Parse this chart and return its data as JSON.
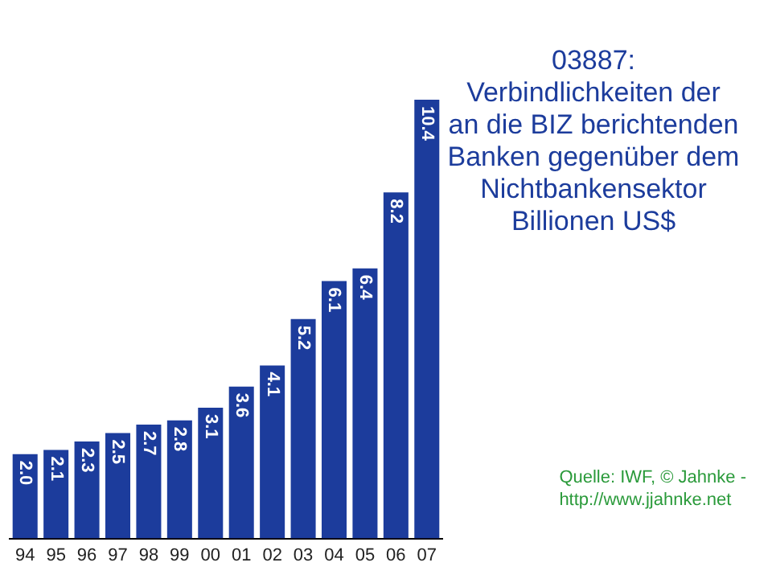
{
  "chart_data": {
    "type": "bar",
    "title": "03887:\nVerbindlichkeiten der\nan die BIZ berichtenden\nBanken gegenüber dem\nNichtbankensektor\nBillionen US$",
    "categories": [
      "94",
      "95",
      "96",
      "97",
      "98",
      "99",
      "00",
      "01",
      "02",
      "03",
      "04",
      "05",
      "06",
      "07"
    ],
    "values": [
      2.0,
      2.1,
      2.3,
      2.5,
      2.7,
      2.8,
      3.1,
      3.6,
      4.1,
      5.2,
      6.1,
      6.4,
      8.2,
      10.4
    ],
    "value_labels": [
      "2.0",
      "2.1",
      "2.3",
      "2.5",
      "2.7",
      "2.8",
      "3.1",
      "3.6",
      "4.1",
      "5.2",
      "6.1",
      "6.4",
      "8.2",
      "10.4"
    ],
    "color": "#1c3c9c",
    "grid": false,
    "legend": false,
    "annotations": [
      "Quelle: IWF, © Jahnke -\nhttp://www.jjahnke.net"
    ]
  }
}
